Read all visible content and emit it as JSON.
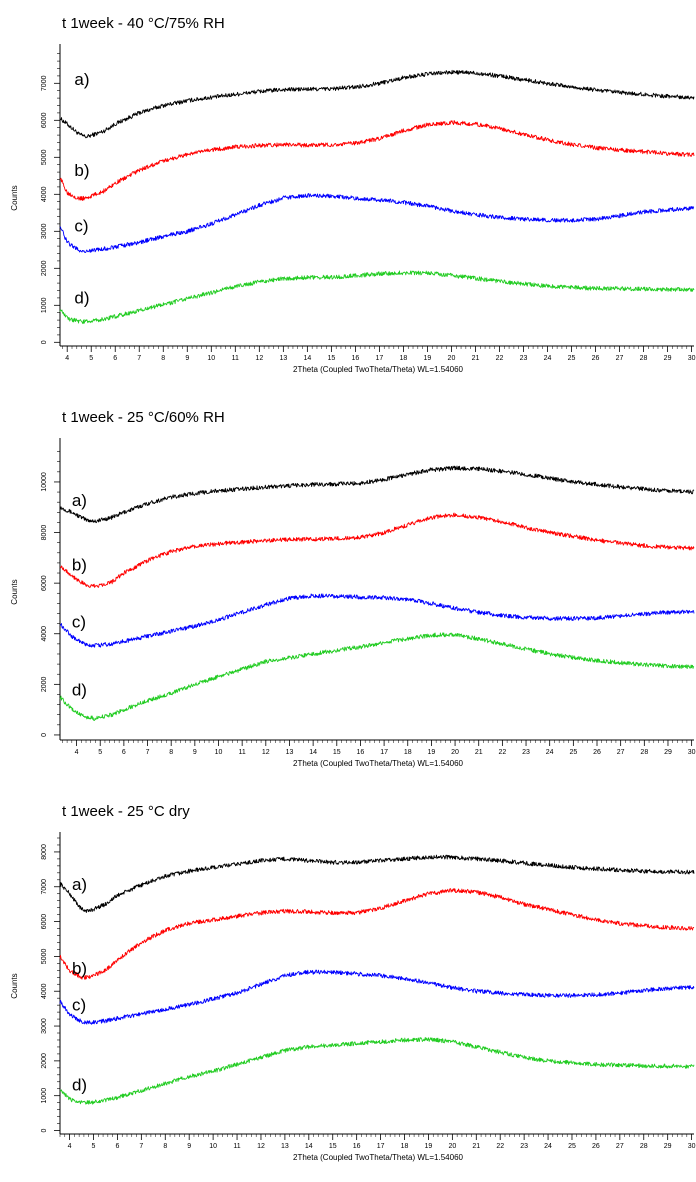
{
  "chart_data": [
    {
      "type": "line",
      "title": "t 1week - 40 °C/75% RH",
      "xlabel": "2Theta (Coupled TwoTheta/Theta) WL=1.54060",
      "ylabel": "Counts",
      "xlim": [
        3.7,
        30.1
      ],
      "ylim": [
        -100,
        7900
      ],
      "xticks": [
        4,
        5,
        6,
        7,
        8,
        9,
        10,
        11,
        12,
        13,
        14,
        15,
        16,
        17,
        18,
        19,
        20,
        21,
        22,
        23,
        24,
        25,
        26,
        27,
        28,
        29,
        30
      ],
      "yticks": [
        0,
        1000,
        2000,
        3000,
        4000,
        5000,
        6000,
        7000
      ],
      "grid": false,
      "series": [
        {
          "name": "a)",
          "color": "#000000",
          "label_at": [
            4.3,
            6950
          ],
          "x": [
            3.7,
            4.0,
            4.5,
            4.8,
            5.5,
            6.0,
            7.0,
            8.0,
            9.0,
            10.0,
            11.0,
            12.0,
            13.0,
            14.0,
            15.0,
            16.0,
            17.0,
            18.0,
            19.0,
            20.0,
            21.0,
            22.0,
            23.0,
            24.0,
            25.0,
            26.0,
            27.0,
            28.0,
            29.0,
            30.1
          ],
          "values": [
            6050,
            5900,
            5620,
            5550,
            5700,
            5900,
            6200,
            6400,
            6530,
            6620,
            6700,
            6780,
            6830,
            6840,
            6850,
            6900,
            7000,
            7150,
            7250,
            7300,
            7280,
            7200,
            7100,
            7000,
            6900,
            6820,
            6750,
            6700,
            6650,
            6620
          ]
        },
        {
          "name": "b)",
          "color": "#ff0000",
          "label_at": [
            4.3,
            4500
          ],
          "x": [
            3.7,
            4.0,
            4.5,
            4.8,
            5.5,
            6.0,
            7.0,
            8.0,
            9.0,
            10.0,
            11.0,
            12.0,
            13.0,
            14.0,
            15.0,
            16.0,
            17.0,
            18.0,
            19.0,
            20.0,
            21.0,
            22.0,
            23.0,
            24.0,
            25.0,
            26.0,
            27.0,
            28.0,
            29.0,
            30.1
          ],
          "values": [
            4450,
            4050,
            3880,
            3900,
            4080,
            4300,
            4650,
            4900,
            5080,
            5200,
            5280,
            5320,
            5340,
            5330,
            5340,
            5380,
            5500,
            5720,
            5880,
            5940,
            5900,
            5780,
            5620,
            5470,
            5350,
            5260,
            5200,
            5150,
            5100,
            5060
          ]
        },
        {
          "name": "c)",
          "color": "#0000ff",
          "label_at": [
            4.3,
            3000
          ],
          "x": [
            3.7,
            4.0,
            4.5,
            4.8,
            5.5,
            6.0,
            7.0,
            8.0,
            9.0,
            10.0,
            11.0,
            12.0,
            13.0,
            14.0,
            15.0,
            16.0,
            17.0,
            18.0,
            19.0,
            20.0,
            21.0,
            22.0,
            23.0,
            24.0,
            25.0,
            26.0,
            27.0,
            28.0,
            29.0,
            30.1
          ],
          "values": [
            3150,
            2700,
            2480,
            2460,
            2520,
            2580,
            2700,
            2860,
            3000,
            3200,
            3450,
            3700,
            3900,
            3970,
            3950,
            3900,
            3850,
            3780,
            3680,
            3550,
            3450,
            3380,
            3330,
            3300,
            3300,
            3330,
            3420,
            3520,
            3580,
            3620
          ]
        },
        {
          "name": "d)",
          "color": "#22cc22",
          "label_at": [
            4.3,
            1050
          ],
          "x": [
            3.7,
            4.0,
            4.5,
            4.8,
            5.5,
            6.0,
            7.0,
            8.0,
            9.0,
            10.0,
            11.0,
            12.0,
            13.0,
            14.0,
            15.0,
            16.0,
            17.0,
            18.0,
            19.0,
            20.0,
            21.0,
            22.0,
            23.0,
            24.0,
            25.0,
            26.0,
            27.0,
            28.0,
            29.0,
            30.1
          ],
          "values": [
            880,
            650,
            560,
            560,
            620,
            700,
            860,
            1020,
            1180,
            1340,
            1500,
            1640,
            1720,
            1750,
            1760,
            1800,
            1850,
            1880,
            1870,
            1810,
            1730,
            1650,
            1580,
            1520,
            1480,
            1460,
            1450,
            1440,
            1430,
            1420
          ]
        }
      ]
    },
    {
      "type": "line",
      "title": "t 1week - 25 °C/60% RH",
      "xlabel": "2Theta (Coupled TwoTheta/Theta) WL=1.54060",
      "ylabel": "Counts",
      "xlim": [
        3.3,
        30.1
      ],
      "ylim": [
        -200,
        11500
      ],
      "xticks": [
        4,
        5,
        6,
        7,
        8,
        9,
        10,
        11,
        12,
        13,
        14,
        15,
        16,
        17,
        18,
        19,
        20,
        21,
        22,
        23,
        24,
        25,
        26,
        27,
        28,
        29,
        30
      ],
      "yticks": [
        0,
        2000,
        4000,
        6000,
        8000,
        10000
      ],
      "grid": false,
      "series": [
        {
          "name": "a)",
          "color": "#000000",
          "label_at": [
            3.8,
            9050
          ],
          "x": [
            3.3,
            3.8,
            4.4,
            4.8,
            5.5,
            6.0,
            7.0,
            8.0,
            9.0,
            10.0,
            11.0,
            12.0,
            13.0,
            14.0,
            15.0,
            16.0,
            17.0,
            18.0,
            19.0,
            20.0,
            21.0,
            22.0,
            23.0,
            24.0,
            25.0,
            26.0,
            27.0,
            28.0,
            29.0,
            30.1
          ],
          "values": [
            9000,
            8800,
            8500,
            8450,
            8600,
            8800,
            9150,
            9400,
            9550,
            9650,
            9720,
            9800,
            9850,
            9900,
            9920,
            9950,
            10100,
            10300,
            10480,
            10550,
            10520,
            10420,
            10300,
            10150,
            10000,
            9900,
            9800,
            9720,
            9650,
            9600
          ]
        },
        {
          "name": "b)",
          "color": "#ff0000",
          "label_at": [
            3.8,
            6500
          ],
          "x": [
            3.3,
            3.8,
            4.4,
            4.8,
            5.5,
            6.0,
            7.0,
            8.0,
            9.0,
            10.0,
            11.0,
            12.0,
            13.0,
            14.0,
            15.0,
            16.0,
            17.0,
            18.0,
            19.0,
            20.0,
            21.0,
            22.0,
            23.0,
            24.0,
            25.0,
            26.0,
            27.0,
            28.0,
            29.0,
            30.1
          ],
          "values": [
            6700,
            6300,
            5900,
            5880,
            6050,
            6400,
            6900,
            7250,
            7450,
            7560,
            7620,
            7680,
            7720,
            7740,
            7760,
            7800,
            8000,
            8300,
            8600,
            8700,
            8600,
            8420,
            8200,
            8000,
            7850,
            7700,
            7580,
            7480,
            7420,
            7380
          ]
        },
        {
          "name": "c)",
          "color": "#0000ff",
          "label_at": [
            3.8,
            4250
          ],
          "x": [
            3.3,
            3.8,
            4.4,
            4.8,
            5.5,
            6.0,
            7.0,
            8.0,
            9.0,
            10.0,
            11.0,
            12.0,
            13.0,
            14.0,
            15.0,
            16.0,
            17.0,
            18.0,
            19.0,
            20.0,
            21.0,
            22.0,
            23.0,
            24.0,
            25.0,
            26.0,
            27.0,
            28.0,
            29.0,
            30.1
          ],
          "values": [
            4400,
            3900,
            3550,
            3530,
            3600,
            3700,
            3900,
            4100,
            4300,
            4550,
            4850,
            5150,
            5400,
            5500,
            5480,
            5450,
            5430,
            5350,
            5200,
            5000,
            4850,
            4720,
            4650,
            4610,
            4600,
            4620,
            4700,
            4780,
            4850,
            4870
          ]
        },
        {
          "name": "d)",
          "color": "#22cc22",
          "label_at": [
            3.8,
            1550
          ],
          "x": [
            3.3,
            3.8,
            4.4,
            4.8,
            5.5,
            6.0,
            7.0,
            8.0,
            9.0,
            10.0,
            11.0,
            12.0,
            13.0,
            14.0,
            15.0,
            16.0,
            17.0,
            18.0,
            19.0,
            20.0,
            21.0,
            22.0,
            23.0,
            24.0,
            25.0,
            26.0,
            27.0,
            28.0,
            29.0,
            30.1
          ],
          "values": [
            1500,
            1000,
            700,
            650,
            800,
            1000,
            1350,
            1650,
            2000,
            2300,
            2600,
            2900,
            3050,
            3200,
            3350,
            3480,
            3650,
            3800,
            3950,
            3960,
            3800,
            3600,
            3400,
            3200,
            3050,
            2950,
            2850,
            2780,
            2720,
            2680
          ]
        }
      ]
    },
    {
      "type": "line",
      "title": "t 1week - 25 °C dry",
      "xlabel": "2Theta (Coupled TwoTheta/Theta) WL=1.54060",
      "ylabel": "Counts",
      "xlim": [
        3.6,
        30.1
      ],
      "ylim": [
        -100,
        8400
      ],
      "xticks": [
        4,
        5,
        6,
        7,
        8,
        9,
        10,
        11,
        12,
        13,
        14,
        15,
        16,
        17,
        18,
        19,
        20,
        21,
        22,
        23,
        24,
        25,
        26,
        27,
        28,
        29,
        30
      ],
      "yticks": [
        0,
        1000,
        2000,
        3000,
        4000,
        5000,
        6000,
        7000,
        8000
      ],
      "grid": false,
      "series": [
        {
          "name": "a)",
          "color": "#000000",
          "label_at": [
            4.1,
            6900
          ],
          "x": [
            3.6,
            4.0,
            4.5,
            4.8,
            5.5,
            6.0,
            7.0,
            8.0,
            9.0,
            10.0,
            11.0,
            12.0,
            13.0,
            14.0,
            15.0,
            16.0,
            17.0,
            18.0,
            19.0,
            20.0,
            21.0,
            22.0,
            23.0,
            24.0,
            25.0,
            26.0,
            27.0,
            28.0,
            29.0,
            30.1
          ],
          "values": [
            7100,
            6800,
            6350,
            6300,
            6500,
            6750,
            7050,
            7300,
            7450,
            7550,
            7650,
            7750,
            7800,
            7750,
            7700,
            7700,
            7750,
            7800,
            7850,
            7850,
            7800,
            7750,
            7680,
            7620,
            7560,
            7520,
            7480,
            7450,
            7430,
            7420
          ]
        },
        {
          "name": "b)",
          "color": "#ff0000",
          "label_at": [
            4.1,
            4500
          ],
          "x": [
            3.6,
            4.0,
            4.5,
            4.8,
            5.5,
            6.0,
            7.0,
            8.0,
            9.0,
            10.0,
            11.0,
            12.0,
            13.0,
            14.0,
            15.0,
            16.0,
            17.0,
            18.0,
            19.0,
            20.0,
            21.0,
            22.0,
            23.0,
            24.0,
            25.0,
            26.0,
            27.0,
            28.0,
            29.0,
            30.1
          ],
          "values": [
            5000,
            4600,
            4400,
            4400,
            4600,
            4900,
            5400,
            5750,
            5950,
            6050,
            6150,
            6250,
            6300,
            6280,
            6250,
            6250,
            6380,
            6600,
            6800,
            6900,
            6850,
            6700,
            6500,
            6350,
            6200,
            6050,
            5950,
            5880,
            5830,
            5800
          ]
        },
        {
          "name": "c)",
          "color": "#0000ff",
          "label_at": [
            4.1,
            3450
          ],
          "x": [
            3.6,
            4.0,
            4.5,
            4.8,
            5.5,
            6.0,
            7.0,
            8.0,
            9.0,
            10.0,
            11.0,
            12.0,
            13.0,
            14.0,
            15.0,
            16.0,
            17.0,
            18.0,
            19.0,
            20.0,
            21.0,
            22.0,
            23.0,
            24.0,
            25.0,
            26.0,
            27.0,
            28.0,
            29.0,
            30.1
          ],
          "values": [
            3700,
            3350,
            3120,
            3100,
            3150,
            3220,
            3350,
            3480,
            3620,
            3780,
            3950,
            4200,
            4450,
            4550,
            4550,
            4500,
            4450,
            4350,
            4250,
            4100,
            4000,
            3950,
            3900,
            3880,
            3880,
            3900,
            3950,
            4020,
            4080,
            4120
          ]
        },
        {
          "name": "d)",
          "color": "#22cc22",
          "label_at": [
            4.1,
            1150
          ],
          "x": [
            3.6,
            4.0,
            4.5,
            4.8,
            5.5,
            6.0,
            7.0,
            8.0,
            9.0,
            10.0,
            11.0,
            12.0,
            13.0,
            14.0,
            15.0,
            16.0,
            17.0,
            18.0,
            19.0,
            20.0,
            21.0,
            22.0,
            23.0,
            24.0,
            25.0,
            26.0,
            27.0,
            28.0,
            29.0,
            30.1
          ],
          "values": [
            1200,
            900,
            800,
            800,
            870,
            950,
            1150,
            1350,
            1550,
            1700,
            1900,
            2100,
            2300,
            2400,
            2450,
            2500,
            2550,
            2600,
            2620,
            2550,
            2400,
            2250,
            2100,
            2000,
            1950,
            1900,
            1880,
            1860,
            1850,
            1840
          ]
        }
      ]
    }
  ]
}
